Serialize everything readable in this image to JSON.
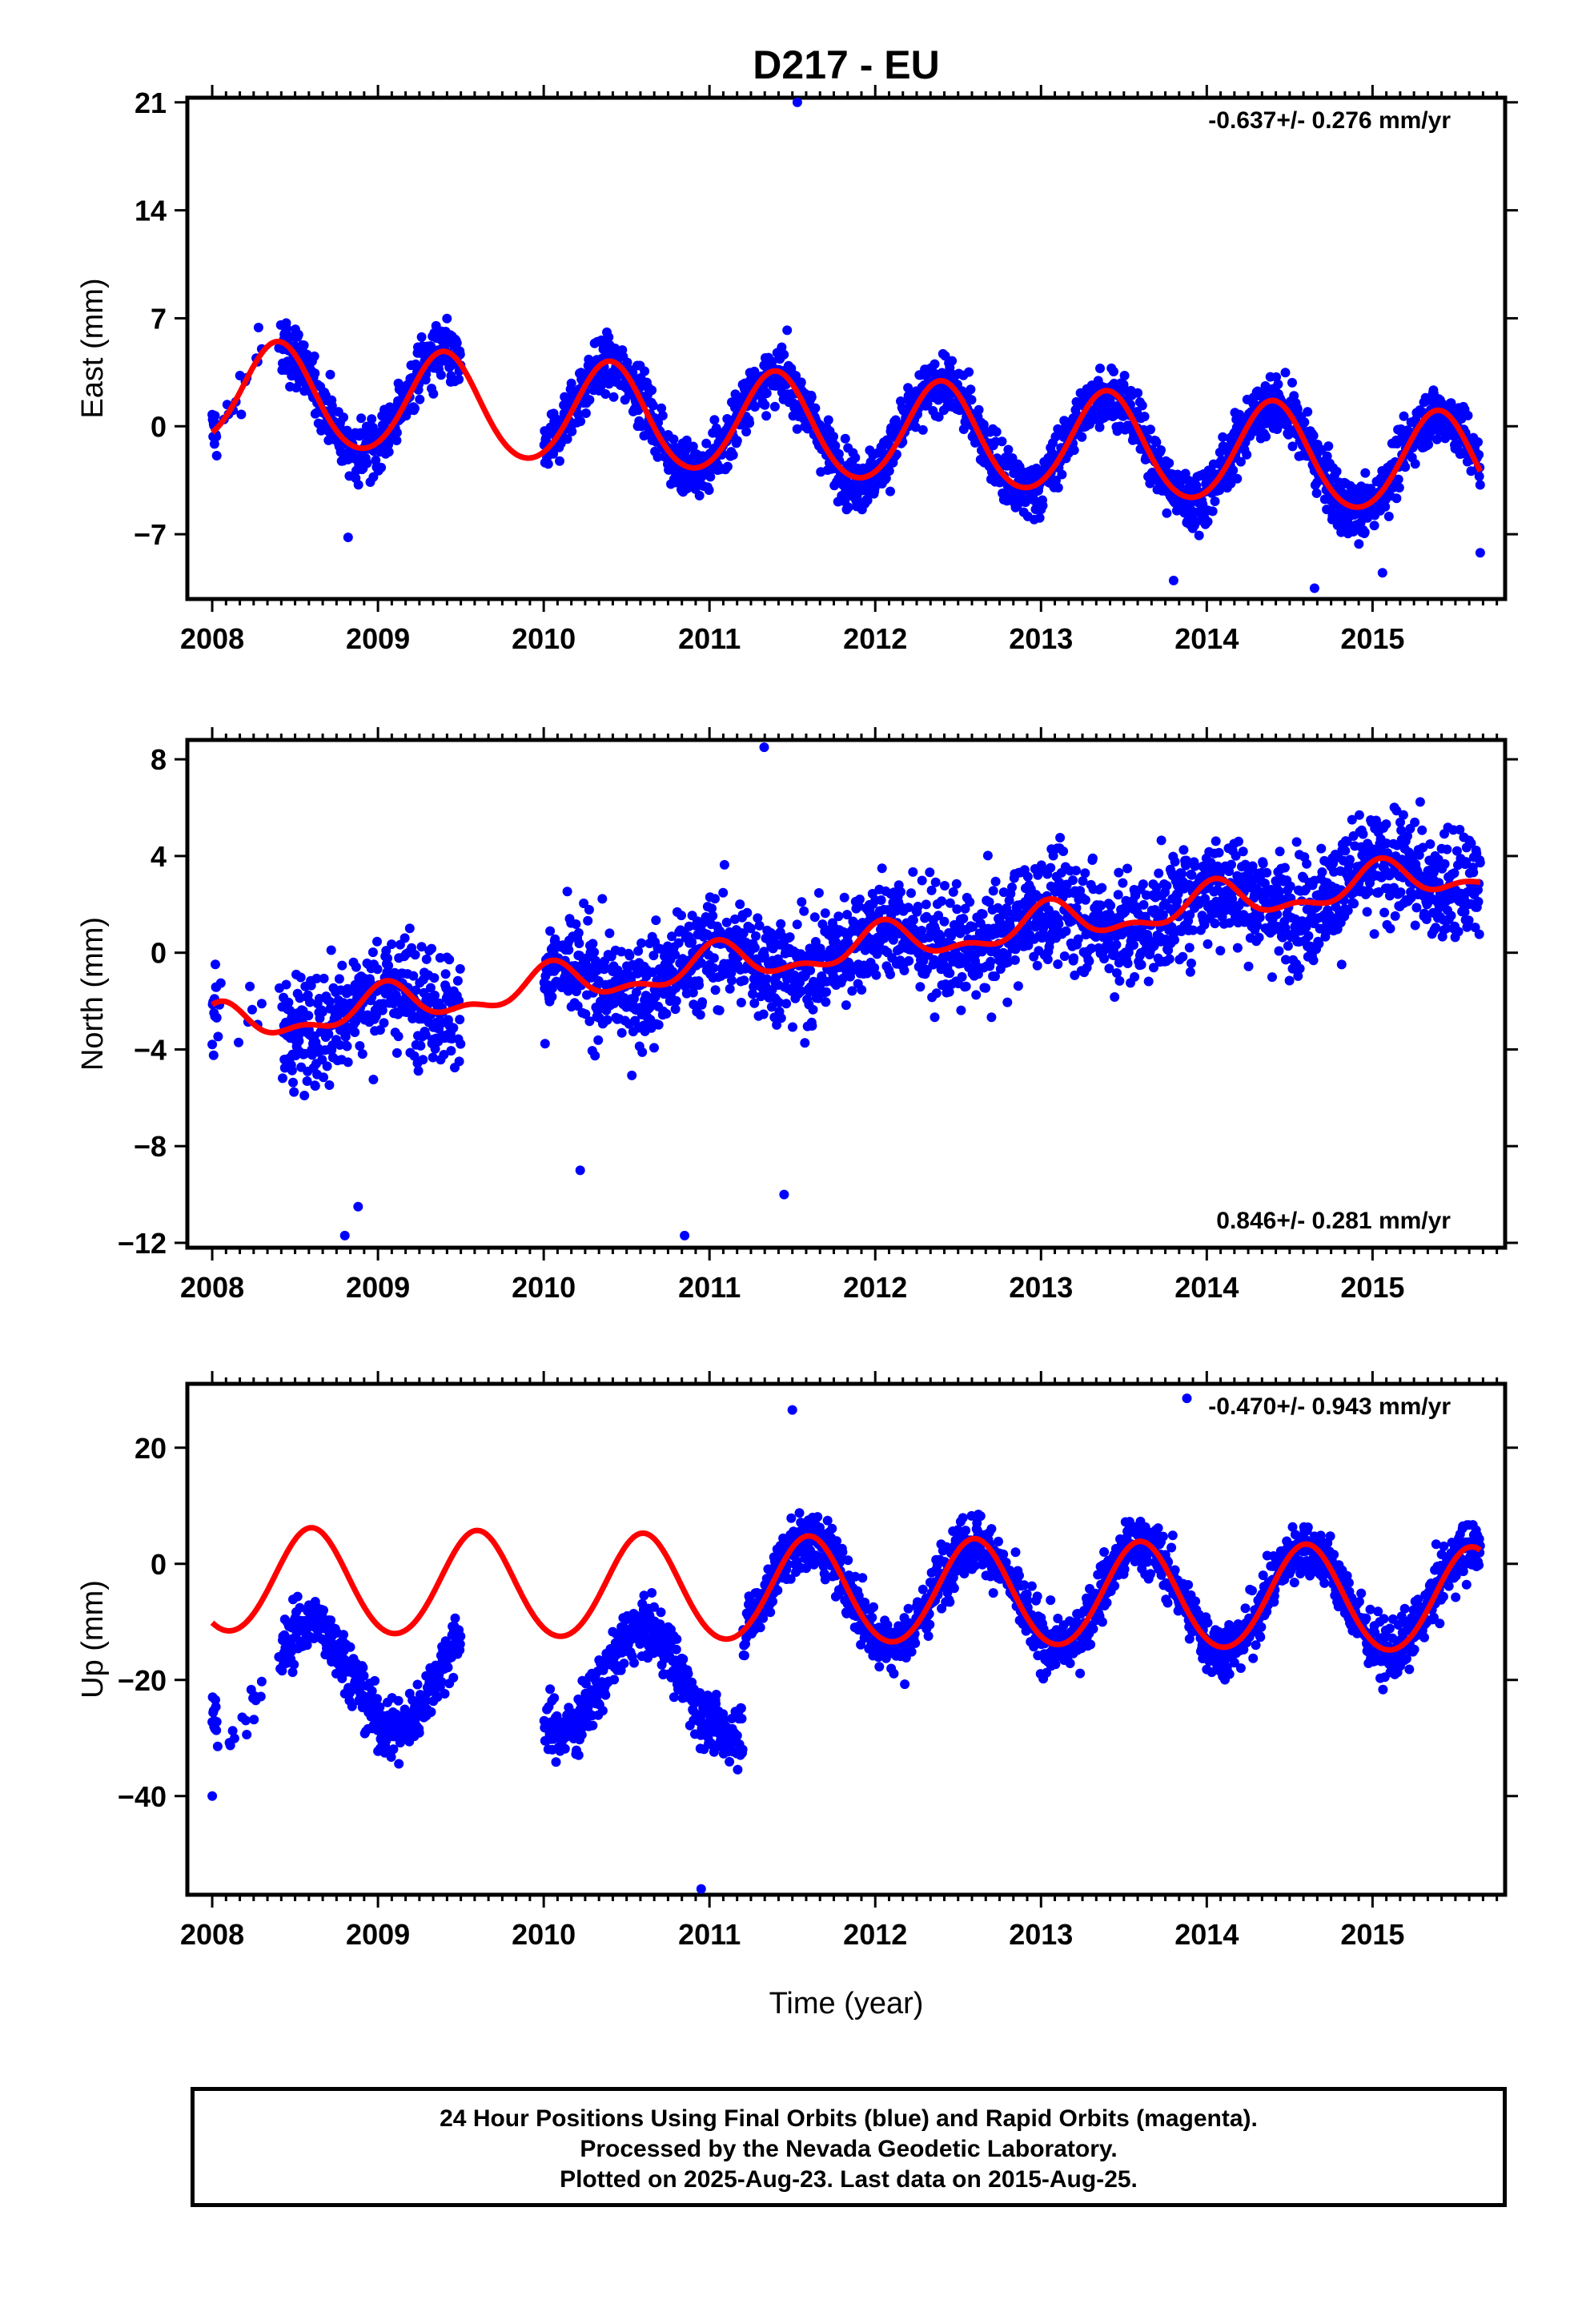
{
  "title": "D217 - EU",
  "colors": {
    "points": "#0000ff",
    "fit": "#ff0000",
    "frame": "#000000"
  },
  "xlabel": "Time (year)",
  "xticks": [
    2008,
    2009,
    2010,
    2011,
    2012,
    2013,
    2014,
    2015
  ],
  "footer": {
    "line1": "24 Hour Positions Using Final Orbits (blue) and Rapid Orbits (magenta).",
    "line2": "Processed by the Nevada Geodetic Laboratory.",
    "line3": "Plotted on 2025-Aug-23. Last data on 2015-Aug-25."
  },
  "chart_data": [
    {
      "type": "scatter",
      "title": "D217 - EU",
      "ylabel": "East (mm)",
      "rate_label": "-0.637+/- 0.276 mm/yr",
      "rate_position": "top-right",
      "xlim": [
        2007.85,
        2015.8
      ],
      "ylim": [
        -11.2,
        21.3
      ],
      "yticks": [
        21,
        14,
        7,
        0,
        -7
      ],
      "ytick_labels": [
        "21",
        "14",
        "7",
        "0",
        "−7"
      ],
      "grid": false,
      "series": [
        {
          "role": "daily positions",
          "x_range": [
            2008.0,
            2015.65
          ],
          "gaps": [
            [
              2008.3,
              2008.4
            ],
            [
              2009.5,
              2010.0
            ]
          ],
          "annual_amplitude": 3.3,
          "annual_phase_peak": 0.4,
          "scatter_sigma": 1.3,
          "intercept_2008": 2.2,
          "outliers": [
            [
              2011.53,
              21.0
            ],
            [
              2013.8,
              -10.0
            ],
            [
              2014.65,
              -10.5
            ],
            [
              2015.06,
              -9.5
            ],
            [
              2015.65,
              -8.2
            ],
            [
              2008.82,
              -7.2
            ]
          ]
        },
        {
          "role": "model fit",
          "x_range": [
            2008.0,
            2015.65
          ],
          "annual_amplitude": 3.3,
          "annual_phase_peak": 0.4,
          "semiannual_amplitude": 0.25,
          "slope": -0.637,
          "intercept_2008": 2.2
        }
      ]
    },
    {
      "type": "scatter",
      "ylabel": "North (mm)",
      "rate_label": "0.846+/- 0.281 mm/yr",
      "rate_position": "bottom-right",
      "xlim": [
        2007.85,
        2015.8
      ],
      "ylim": [
        -12.2,
        8.8
      ],
      "yticks": [
        8,
        4,
        0,
        -4,
        -8,
        -12
      ],
      "ytick_labels": [
        "8",
        "4",
        "0",
        "−4",
        "−8",
        "−12"
      ],
      "grid": false,
      "series": [
        {
          "role": "daily positions",
          "x_range": [
            2008.0,
            2015.65
          ],
          "gaps": [
            [
              2008.3,
              2008.4
            ],
            [
              2009.5,
              2010.0
            ]
          ],
          "annual_amplitude": 0.7,
          "annual_phase_peak": 0.05,
          "scatter_sigma": 1.6,
          "intercept_2008": -3.1,
          "outliers": [
            [
              2011.33,
              8.5
            ],
            [
              2008.88,
              -10.5
            ],
            [
              2008.8,
              -11.7
            ],
            [
              2010.85,
              -11.7
            ],
            [
              2011.45,
              -10.0
            ],
            [
              2010.22,
              -9.0
            ]
          ]
        },
        {
          "role": "model fit",
          "x_range": [
            2008.0,
            2015.65
          ],
          "annual_amplitude": 0.7,
          "annual_phase_peak": 0.05,
          "semiannual_amplitude": 0.35,
          "slope": 0.846,
          "intercept_2008": -3.1
        }
      ]
    },
    {
      "type": "scatter",
      "ylabel": "Up (mm)",
      "rate_label": "-0.470+/- 0.943 mm/yr",
      "rate_position": "top-right",
      "xlim": [
        2007.85,
        2015.8
      ],
      "ylim": [
        -57,
        31
      ],
      "yticks": [
        20,
        0,
        -20,
        -40
      ],
      "ytick_labels": [
        "20",
        "0",
        "−20",
        "−40"
      ],
      "grid": false,
      "series": [
        {
          "role": "daily positions",
          "x_range": [
            2008.0,
            2015.65
          ],
          "gaps": [
            [
              2008.3,
              2008.4
            ],
            [
              2009.5,
              2010.0
            ]
          ],
          "offset_before_2011_2": -16,
          "annual_amplitude": 9,
          "annual_phase_peak": 0.6,
          "scatter_sigma": 3.5,
          "intercept_2008": -3,
          "outliers": [
            [
              2013.88,
              28.5
            ],
            [
              2010.95,
              -56
            ],
            [
              2008.0,
              -40
            ],
            [
              2011.5,
              26.5
            ]
          ]
        },
        {
          "role": "model fit",
          "x_range": [
            2008.0,
            2015.65
          ],
          "annual_amplitude": 9,
          "annual_phase_peak": 0.6,
          "semiannual_amplitude": 0.5,
          "slope": -0.47,
          "intercept_2008": -3
        }
      ]
    }
  ]
}
